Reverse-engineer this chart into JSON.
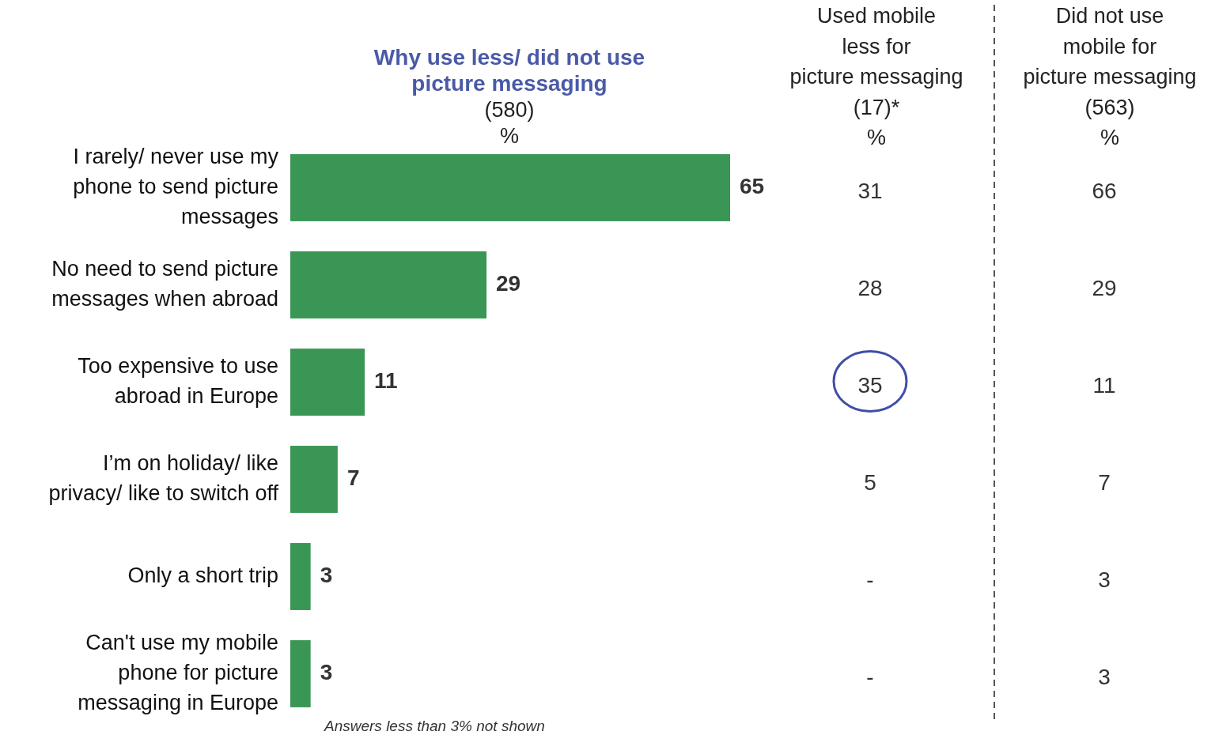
{
  "chart_data": [
    {
      "type": "bar",
      "orientation": "horizontal",
      "title": "Why use less/ did not use\npicture messaging",
      "subtitle": "(580)\n%",
      "categories": [
        "I rarely/ never use my\nphone to send picture\nmessages",
        "No need to send picture\nmessages when abroad",
        "Too expensive to use\nabroad in Europe",
        "I’m on holiday/ like\nprivacy/ like to switch off",
        "Only a short trip",
        "Can't use my mobile\nphone for picture\nmessaging in Europe"
      ],
      "values": [
        65,
        29,
        11,
        7,
        3,
        3
      ],
      "color": "#3a9655",
      "xlim": [
        0,
        65
      ],
      "data_labels": true,
      "annotations": [
        "Answers less than 3% not shown"
      ]
    },
    {
      "type": "other",
      "annotations": [
        "Used mobile\nless for\npicture messaging\n(17)*\n%",
        "Did not use\nmobile for\npicture messaging\n(563)\n%",
        "31",
        "28",
        "35",
        "5",
        "-",
        "-",
        "66",
        "29",
        "11",
        "7",
        "3",
        "3"
      ]
    }
  ]
}
